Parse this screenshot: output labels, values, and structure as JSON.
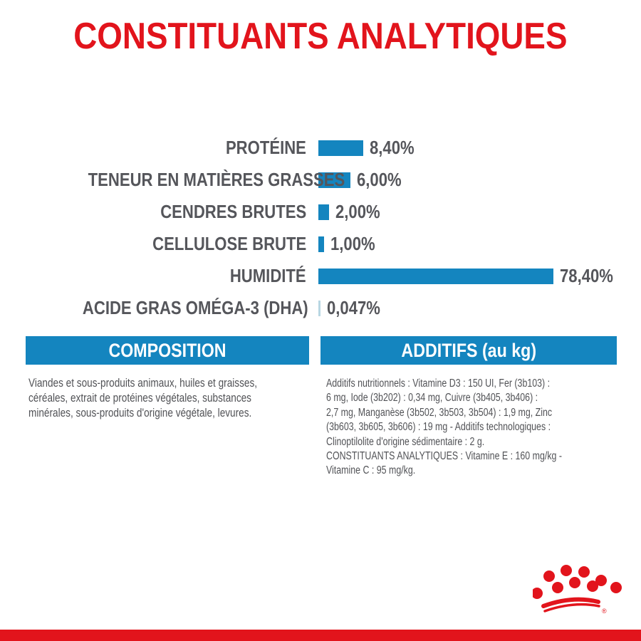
{
  "title": "CONSTITUANTS ANALYTIQUES",
  "colors": {
    "red": "#e2141c",
    "blue": "#1485bf",
    "light_blue": "#b8d7e3",
    "label_gray": "#55565b",
    "body_gray": "#515256"
  },
  "chart_data": {
    "type": "bar",
    "orientation": "horizontal",
    "title": "CONSTITUANTS ANALYTIQUES",
    "unit": "%",
    "categories": [
      "PROTÉINE",
      "TENEUR EN MATIÈRES GRASSES",
      "CENDRES BRUTES",
      "CELLULOSE BRUTE",
      "HUMIDITÉ",
      "ACIDE GRAS OMÉGA-3 (DHA)"
    ],
    "values": [
      8.4,
      6.0,
      2.0,
      1.0,
      78.4,
      0.047
    ],
    "value_labels": [
      "8,40%",
      "6,00%",
      "2,00%",
      "1,00%",
      "78,40%",
      "0,047%"
    ],
    "bar_color": "#1485bf",
    "grid": false,
    "legend": false
  },
  "sections": {
    "composition": {
      "header": "COMPOSITION",
      "body": "Viandes et sous-produits animaux, huiles et graisses,\ncéréales, extrait de protéines végétales, substances\nminérales, sous-produits d'origine végétale, levures."
    },
    "additifs": {
      "header": "ADDITIFS (au kg)",
      "body": "Additifs nutritionnels : Vitamine D3 : 150 UI, Fer (3b103) :\n6 mg, Iode (3b202) : 0,34 mg, Cuivre (3b405, 3b406) :\n2,7 mg, Manganèse (3b502, 3b503, 3b504) : 1,9 mg, Zinc\n(3b603, 3b605, 3b606) : 19 mg - Additifs technologiques :\nClinoptilolite d'origine sédimentaire : 2 g.\nCONSTITUANTS ANALYTIQUES : Vitamine E : 160 mg/kg -\nVitamine C : 95 mg/kg."
    }
  },
  "footer": {
    "brand": "royal-canin-crown",
    "trademark": "®"
  }
}
